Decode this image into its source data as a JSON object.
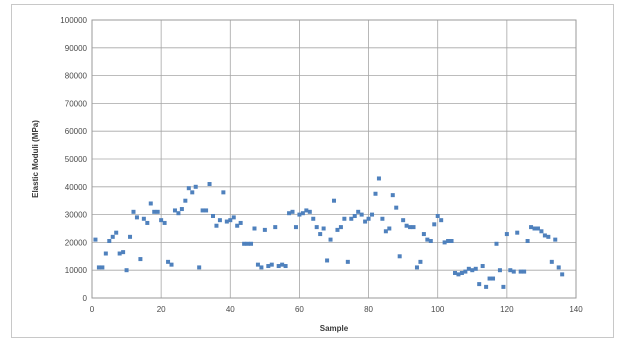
{
  "chart_data": {
    "type": "scatter",
    "title": "",
    "xlabel": "Sample",
    "ylabel": "Elastic Moduli (MPa)",
    "xlim": [
      0,
      140
    ],
    "ylim": [
      0,
      100000
    ],
    "x_ticks": [
      "0",
      "20",
      "40",
      "60",
      "80",
      "100",
      "120",
      "140"
    ],
    "y_ticks": [
      "0",
      "10000",
      "20000",
      "30000",
      "40000",
      "50000",
      "60000",
      "70000",
      "80000",
      "90000",
      "100000"
    ],
    "grid": true,
    "legend": "none",
    "marker_color": "#4f81bd",
    "series": [
      {
        "points": [
          [
            1,
            21000
          ],
          [
            2,
            11000
          ],
          [
            3,
            11000
          ],
          [
            4,
            16000
          ],
          [
            5,
            20500
          ],
          [
            6,
            22000
          ],
          [
            7,
            23500
          ],
          [
            8,
            16000
          ],
          [
            9,
            16500
          ],
          [
            10,
            10000
          ],
          [
            11,
            22000
          ],
          [
            12,
            31000
          ],
          [
            13,
            29000
          ],
          [
            14,
            14000
          ],
          [
            15,
            28500
          ],
          [
            16,
            27000
          ],
          [
            17,
            34000
          ],
          [
            18,
            31000
          ],
          [
            19,
            31000
          ],
          [
            20,
            28000
          ],
          [
            21,
            27000
          ],
          [
            22,
            13000
          ],
          [
            23,
            12000
          ],
          [
            24,
            31500
          ],
          [
            25,
            30500
          ],
          [
            26,
            32000
          ],
          [
            27,
            35000
          ],
          [
            28,
            39500
          ],
          [
            29,
            38000
          ],
          [
            30,
            40000
          ],
          [
            31,
            11000
          ],
          [
            32,
            31500
          ],
          [
            33,
            31500
          ],
          [
            34,
            41000
          ],
          [
            35,
            29500
          ],
          [
            36,
            26000
          ],
          [
            37,
            28000
          ],
          [
            38,
            38000
          ],
          [
            39,
            27500
          ],
          [
            40,
            28000
          ],
          [
            41,
            29000
          ],
          [
            42,
            26000
          ],
          [
            43,
            27000
          ],
          [
            44,
            19500
          ],
          [
            45,
            19500
          ],
          [
            46,
            19500
          ],
          [
            47,
            25000
          ],
          [
            48,
            12000
          ],
          [
            49,
            11000
          ],
          [
            50,
            24500
          ],
          [
            51,
            11500
          ],
          [
            52,
            12000
          ],
          [
            53,
            25500
          ],
          [
            54,
            11500
          ],
          [
            55,
            12000
          ],
          [
            56,
            11500
          ],
          [
            57,
            30500
          ],
          [
            58,
            31000
          ],
          [
            59,
            25500
          ],
          [
            60,
            30000
          ],
          [
            61,
            30500
          ],
          [
            62,
            31500
          ],
          [
            63,
            31000
          ],
          [
            64,
            28500
          ],
          [
            65,
            25500
          ],
          [
            66,
            23000
          ],
          [
            67,
            25000
          ],
          [
            68,
            13500
          ],
          [
            69,
            21000
          ],
          [
            70,
            35000
          ],
          [
            71,
            24500
          ],
          [
            72,
            25500
          ],
          [
            73,
            28500
          ],
          [
            74,
            13000
          ],
          [
            75,
            28500
          ],
          [
            76,
            29500
          ],
          [
            77,
            31000
          ],
          [
            78,
            30000
          ],
          [
            79,
            27500
          ],
          [
            80,
            28500
          ],
          [
            81,
            30000
          ],
          [
            82,
            37500
          ],
          [
            83,
            43000
          ],
          [
            84,
            28500
          ],
          [
            85,
            24000
          ],
          [
            86,
            25000
          ],
          [
            87,
            37000
          ],
          [
            88,
            32500
          ],
          [
            89,
            15000
          ],
          [
            90,
            28000
          ],
          [
            91,
            26000
          ],
          [
            92,
            25500
          ],
          [
            93,
            25500
          ],
          [
            94,
            11000
          ],
          [
            95,
            13000
          ],
          [
            96,
            23000
          ],
          [
            97,
            21000
          ],
          [
            98,
            20500
          ],
          [
            99,
            26500
          ],
          [
            100,
            29500
          ],
          [
            101,
            28000
          ],
          [
            102,
            20000
          ],
          [
            103,
            20500
          ],
          [
            104,
            20500
          ],
          [
            105,
            9000
          ],
          [
            106,
            8500
          ],
          [
            107,
            9000
          ],
          [
            108,
            9500
          ],
          [
            109,
            10500
          ],
          [
            110,
            10000
          ],
          [
            111,
            10500
          ],
          [
            112,
            5000
          ],
          [
            113,
            11500
          ],
          [
            114,
            4000
          ],
          [
            115,
            7000
          ],
          [
            116,
            7000
          ],
          [
            117,
            19500
          ],
          [
            118,
            10000
          ],
          [
            119,
            4000
          ],
          [
            120,
            23000
          ],
          [
            121,
            10000
          ],
          [
            122,
            9500
          ],
          [
            123,
            23500
          ],
          [
            124,
            9500
          ],
          [
            125,
            9500
          ],
          [
            126,
            20500
          ],
          [
            127,
            25500
          ],
          [
            128,
            25000
          ],
          [
            129,
            25000
          ],
          [
            130,
            24000
          ],
          [
            131,
            22500
          ],
          [
            132,
            22000
          ],
          [
            133,
            13000
          ],
          [
            134,
            21000
          ],
          [
            135,
            11000
          ],
          [
            136,
            8500
          ]
        ]
      }
    ]
  }
}
